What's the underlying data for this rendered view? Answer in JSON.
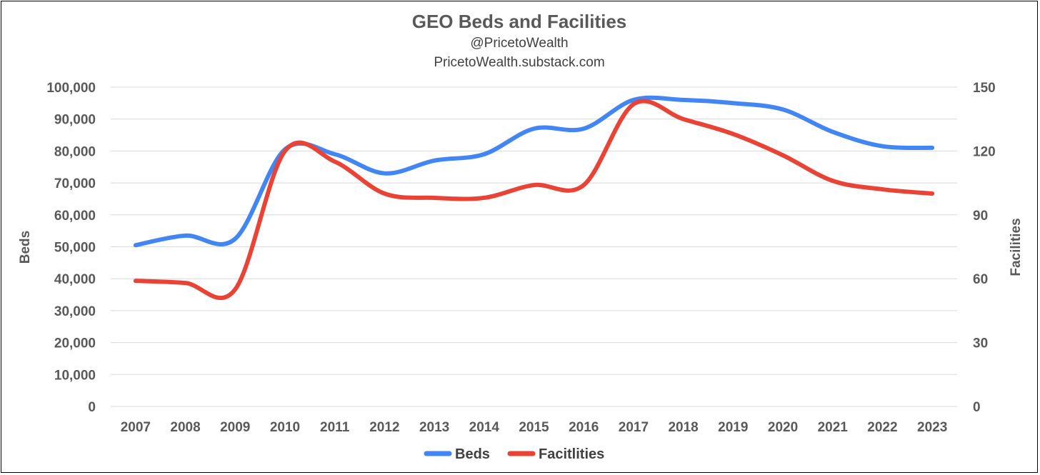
{
  "chart_data": {
    "type": "line",
    "title": "GEO Beds and Facilities",
    "subtitle_lines": [
      "@PricetoWealth",
      "PricetoWealth.substack.com"
    ],
    "x": [
      "2007",
      "2008",
      "2009",
      "2010",
      "2011",
      "2012",
      "2013",
      "2014",
      "2015",
      "2016",
      "2017",
      "2018",
      "2019",
      "2020",
      "2021",
      "2022",
      "2023"
    ],
    "ylabel": "Beds",
    "ylabel_right": "Facilities",
    "ylim": [
      0,
      100000
    ],
    "ylim_right": [
      0,
      150
    ],
    "yticks": [
      "0",
      "10,000",
      "20,000",
      "30,000",
      "40,000",
      "50,000",
      "60,000",
      "70,000",
      "80,000",
      "90,000",
      "100,000"
    ],
    "yticks_right": [
      "0",
      "30",
      "60",
      "90",
      "120",
      "150"
    ],
    "grid": true,
    "legend_position": "bottom",
    "series": [
      {
        "name": "Beds",
        "axis": "left",
        "color": "#4285f4",
        "values": [
          50500,
          53500,
          52500,
          80500,
          79000,
          73000,
          77000,
          79000,
          87000,
          87000,
          96000,
          96000,
          95000,
          93000,
          86000,
          81500,
          81000
        ]
      },
      {
        "name": "Facitlities",
        "axis": "right",
        "color": "#ea4335",
        "values": [
          59,
          58,
          55,
          120,
          115,
          100,
          98,
          98,
          104,
          104,
          142,
          135,
          128,
          118,
          106,
          102,
          100
        ]
      }
    ]
  }
}
